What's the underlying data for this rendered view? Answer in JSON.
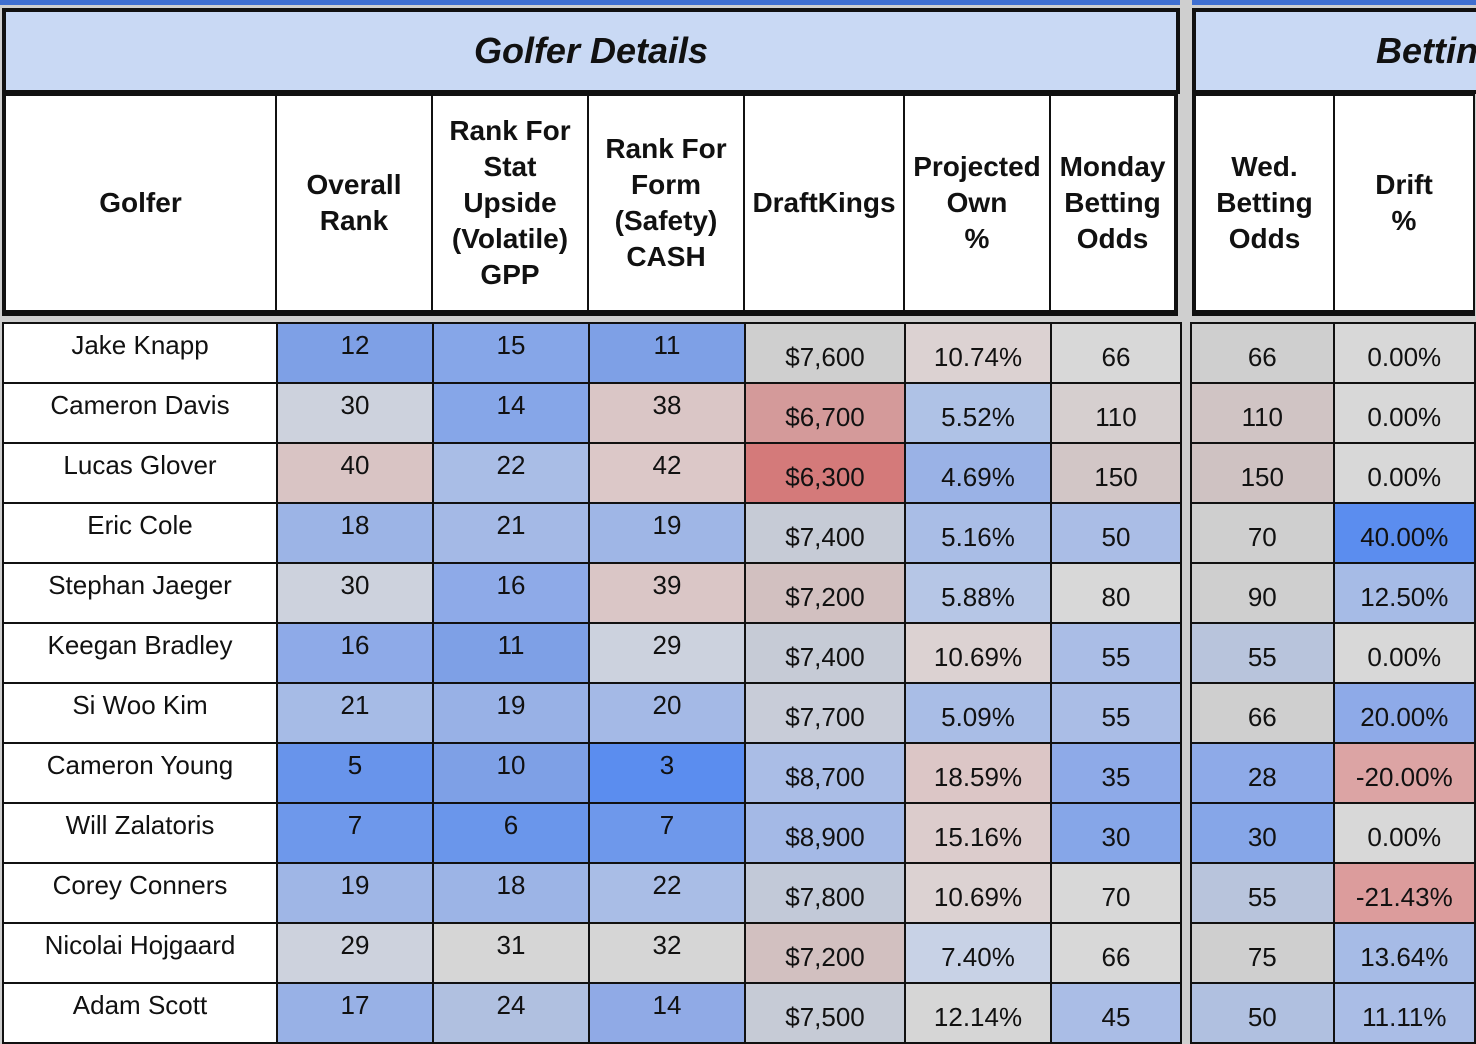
{
  "sections": {
    "golfer_details": "Golfer Details",
    "betting": "Betting"
  },
  "headers": {
    "golfer": "Golfer",
    "overall_rank": [
      "Overall",
      "Rank"
    ],
    "rank_stat": [
      "Rank For",
      "Stat",
      "Upside",
      "(Volatile)",
      "GPP"
    ],
    "rank_form": [
      "Rank For",
      "Form",
      "(Safety)",
      "CASH"
    ],
    "draftkings": "DraftKings",
    "projected_own": [
      "Projected",
      "Own",
      "%"
    ],
    "monday_odds": [
      "Monday",
      "Betting",
      "Odds"
    ],
    "wed_odds": [
      "Wed.",
      "Betting",
      "Odds"
    ],
    "drift": [
      "Drift",
      "%"
    ]
  },
  "rows": [
    {
      "golfer": "Jake Knapp",
      "overall": "12",
      "stat": "15",
      "form": "11",
      "dk": "$7,600",
      "own": "10.74%",
      "mon": "66",
      "wed": "66",
      "drift": "0.00%"
    },
    {
      "golfer": "Cameron Davis",
      "overall": "30",
      "stat": "14",
      "form": "38",
      "dk": "$6,700",
      "own": "5.52%",
      "mon": "110",
      "wed": "110",
      "drift": "0.00%"
    },
    {
      "golfer": "Lucas Glover",
      "overall": "40",
      "stat": "22",
      "form": "42",
      "dk": "$6,300",
      "own": "4.69%",
      "mon": "150",
      "wed": "150",
      "drift": "0.00%"
    },
    {
      "golfer": "Eric Cole",
      "overall": "18",
      "stat": "21",
      "form": "19",
      "dk": "$7,400",
      "own": "5.16%",
      "mon": "50",
      "wed": "70",
      "drift": "40.00%"
    },
    {
      "golfer": "Stephan Jaeger",
      "overall": "30",
      "stat": "16",
      "form": "39",
      "dk": "$7,200",
      "own": "5.88%",
      "mon": "80",
      "wed": "90",
      "drift": "12.50%"
    },
    {
      "golfer": "Keegan Bradley",
      "overall": "16",
      "stat": "11",
      "form": "29",
      "dk": "$7,400",
      "own": "10.69%",
      "mon": "55",
      "wed": "55",
      "drift": "0.00%"
    },
    {
      "golfer": "Si Woo Kim",
      "overall": "21",
      "stat": "19",
      "form": "20",
      "dk": "$7,700",
      "own": "5.09%",
      "mon": "55",
      "wed": "66",
      "drift": "20.00%"
    },
    {
      "golfer": "Cameron Young",
      "overall": "5",
      "stat": "10",
      "form": "3",
      "dk": "$8,700",
      "own": "18.59%",
      "mon": "35",
      "wed": "28",
      "drift": "-20.00%"
    },
    {
      "golfer": "Will Zalatoris",
      "overall": "7",
      "stat": "6",
      "form": "7",
      "dk": "$8,900",
      "own": "15.16%",
      "mon": "30",
      "wed": "30",
      "drift": "0.00%"
    },
    {
      "golfer": "Corey Conners",
      "overall": "19",
      "stat": "18",
      "form": "22",
      "dk": "$7,800",
      "own": "10.69%",
      "mon": "70",
      "wed": "55",
      "drift": "-21.43%"
    },
    {
      "golfer": "Nicolai Hojgaard",
      "overall": "29",
      "stat": "31",
      "form": "32",
      "dk": "$7,200",
      "own": "7.40%",
      "mon": "66",
      "wed": "75",
      "drift": "13.64%"
    },
    {
      "golfer": "Adam Scott",
      "overall": "17",
      "stat": "24",
      "form": "14",
      "dk": "$7,500",
      "own": "12.14%",
      "mon": "45",
      "wed": "50",
      "drift": "11.11%"
    }
  ],
  "colors": {
    "header_band": "#c9d9f4",
    "rank_scale_low": "#5b8def",
    "rank_scale_high": "#d9c2c2",
    "dk_low": "#d47a7a",
    "dk_high": "#9fb6e6",
    "neutral": "#d4d4d4"
  },
  "cell_colors": [
    {
      "overall": "#7ea0e6",
      "stat": "#86a6e8",
      "form": "#7ea0e6",
      "dk": "#cfcfcf",
      "own": "#dcd2d2",
      "mon": "#d8d8d8",
      "wed": "#cfcfcf",
      "drift": "#d8d8d8"
    },
    {
      "overall": "#cdd2dd",
      "stat": "#86a6e8",
      "form": "#dac6c6",
      "dk": "#d49a9a",
      "own": "#afc2e6",
      "mon": "#d6cfcf",
      "wed": "#d0c4c4",
      "drift": "#d8d8d8"
    },
    {
      "overall": "#d9c4c4",
      "stat": "#a9bde6",
      "form": "#dcc8c8",
      "dk": "#d47a7a",
      "own": "#9ab2e6",
      "mon": "#d2c6c6",
      "wed": "#cfc2c2",
      "drift": "#d8d8d8"
    },
    {
      "overall": "#9cb4e6",
      "stat": "#a4b9e6",
      "form": "#9fb6e6",
      "dk": "#c6cbd6",
      "own": "#a9bde6",
      "mon": "#aabde6",
      "wed": "#cfcfcf",
      "drift": "#5b8def"
    },
    {
      "overall": "#cdd2dd",
      "stat": "#8eaae8",
      "form": "#dac6c6",
      "dk": "#d2c0c0",
      "own": "#b6c6e6",
      "mon": "#d8d8d8",
      "wed": "#cfcfcf",
      "drift": "#a6bbe6"
    },
    {
      "overall": "#8eaae8",
      "stat": "#7ea0e6",
      "form": "#ccd2de",
      "dk": "#c6cbd6",
      "own": "#dcd2d2",
      "mon": "#aabde6",
      "wed": "#b8c4dc",
      "drift": "#d8d8d8"
    },
    {
      "overall": "#a6bbe6",
      "stat": "#98b1e6",
      "form": "#a4b9e6",
      "dk": "#c8ccd8",
      "own": "#a9bde6",
      "mon": "#aabde6",
      "wed": "#cfcfcf",
      "drift": "#8eaae8"
    },
    {
      "overall": "#6894eb",
      "stat": "#7ea0e6",
      "form": "#5b8def",
      "dk": "#aabde6",
      "own": "#dcc6c6",
      "mon": "#8eaae8",
      "wed": "#8eaae8",
      "drift": "#dca4a4"
    },
    {
      "overall": "#6e98eb",
      "stat": "#6a96eb",
      "form": "#6e98eb",
      "dk": "#a4b9e6",
      "own": "#dccccc",
      "mon": "#86a6e8",
      "wed": "#86a6e8",
      "drift": "#d8d8d8"
    },
    {
      "overall": "#9fb6e6",
      "stat": "#9cb4e6",
      "form": "#a9bde6",
      "dk": "#c2c9d8",
      "own": "#dcd2d2",
      "mon": "#d8d8d8",
      "wed": "#b8c4dc",
      "drift": "#dc9c9c"
    },
    {
      "overall": "#cdd2dd",
      "stat": "#d6d6d6",
      "form": "#d6d6d6",
      "dk": "#d2c0c0",
      "own": "#c8d2e6",
      "mon": "#d8d8d8",
      "wed": "#cfcfcf",
      "drift": "#a6bbe6"
    },
    {
      "overall": "#98b1e6",
      "stat": "#b0c0e0",
      "form": "#90aae6",
      "dk": "#c6cbd6",
      "own": "#d6d6d6",
      "mon": "#aabde6",
      "wed": "#b0c0e0",
      "drift": "#aabde6"
    }
  ]
}
